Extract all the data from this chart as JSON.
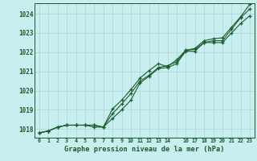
{
  "title": "Graphe pression niveau de la mer (hPa)",
  "background_color": "#c8eef0",
  "grid_color": "#b0d8da",
  "line_color": "#1a5c2a",
  "x_labels": [
    "0",
    "1",
    "2",
    "3",
    "4",
    "5",
    "6",
    "7",
    "8",
    "9",
    "10",
    "11",
    "12",
    "13",
    "14",
    "",
    "16",
    "17",
    "18",
    "19",
    "20",
    "21",
    "22",
    "23"
  ],
  "ylim": [
    1017.55,
    1024.55
  ],
  "yticks": [
    1018,
    1019,
    1020,
    1021,
    1022,
    1023,
    1024
  ],
  "line1": [
    1017.8,
    1017.9,
    1018.1,
    1018.2,
    1018.2,
    1018.2,
    1018.2,
    1018.1,
    1018.8,
    1019.3,
    1019.85,
    1020.5,
    1020.8,
    1021.2,
    1021.3,
    1021.5,
    1022.1,
    1022.15,
    1022.5,
    1022.6,
    1022.6,
    1023.2,
    1023.8,
    1024.25
  ],
  "line2": [
    1017.8,
    1017.9,
    1018.1,
    1018.2,
    1018.2,
    1018.2,
    1018.1,
    1018.1,
    1019.05,
    1019.5,
    1020.05,
    1020.65,
    1021.05,
    1021.4,
    1021.25,
    1021.6,
    1022.1,
    1022.2,
    1022.6,
    1022.7,
    1022.75,
    1023.3,
    1023.85,
    1024.5
  ],
  "line3": [
    1017.8,
    1017.9,
    1018.1,
    1018.2,
    1018.2,
    1018.2,
    1018.2,
    1018.1,
    1018.55,
    1019.0,
    1019.5,
    1020.4,
    1020.75,
    1021.15,
    1021.2,
    1021.4,
    1022.05,
    1022.05,
    1022.5,
    1022.5,
    1022.5,
    1023.0,
    1023.5,
    1023.9
  ],
  "figsize": [
    3.2,
    2.0
  ],
  "dpi": 100
}
